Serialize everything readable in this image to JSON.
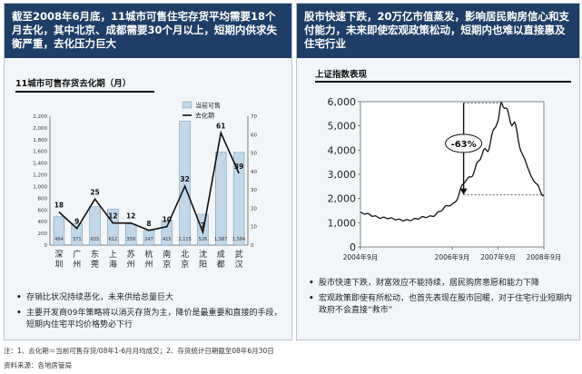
{
  "left_panel": {
    "banner": "截至2008年6月底，11城市可售住宅存货平均需要18个月去化，其中北京、成都需要30个月以上，短期内供求失衡严重，去化压力巨大",
    "bullets": [
      "存销比状况持续恶化，未来供给总量巨大",
      "主要开发商09年策略将以消灭存货为主，降价是最重要和直接的手段，短期内住宅平均价格势必下行"
    ]
  },
  "right_panel": {
    "banner": "股市快速下跌，20万亿市值蒸发，影响居民购房信心和支付能力，未来即使宏观政策松动，短期内也难以直接惠及住宅行业",
    "bullets": [
      "股市快速下跌，财富效应不能持续，居民购房意愿和能力下降",
      "宏观政策即使有所松动，也首先表现在股市回暖，对于住宅行业短期内政府不会直接“救市”"
    ]
  },
  "footnote": "注：1、去化期＝当前可售存货/08年1-6月月均成交；2、存货统计日期截至08年6月30日",
  "source": "资料来源：各地房管局",
  "chart_data": [
    {
      "type": "bar",
      "title": "11城市可售存货去化期（月）",
      "categories": [
        "深圳",
        "广州",
        "东莞",
        "上海",
        "苏州",
        "杭州",
        "南京",
        "北京",
        "沈阳",
        "成都",
        "武汉"
      ],
      "series": [
        {
          "name": "当前可售",
          "axis": "left",
          "values": [
            484,
            371,
            655,
            612,
            359,
            247,
            415,
            2115,
            526,
            1587,
            1584
          ],
          "labels": [
            "484",
            "371",
            "655",
            "612",
            "359",
            "247",
            "415",
            "2,115",
            "526",
            "1,587",
            "1,584"
          ]
        },
        {
          "name": "去化期",
          "axis": "right",
          "type": "line",
          "values": [
            18,
            9,
            25,
            12,
            12,
            8,
            10,
            32,
            7,
            61,
            39
          ]
        }
      ],
      "ylim_left": [
        0,
        2200
      ],
      "yticks_left": [
        "0",
        "200",
        "400",
        "600",
        "800",
        "1,000",
        "1,200",
        "1,400",
        "1,600",
        "1,800",
        "2,000",
        "2,200"
      ],
      "ylim_right": [
        0,
        70
      ],
      "yticks_right": [
        "0",
        "10",
        "20",
        "30",
        "40",
        "50",
        "60",
        "70"
      ],
      "legend_position": "top-right",
      "colors": {
        "bar": "#c3d7e6",
        "bar_edge": "#7f9db5",
        "line": "#111111"
      }
    },
    {
      "type": "line",
      "title": "上证指数表现",
      "x": [
        "2004-09",
        "2005-03",
        "2005-09",
        "2006-03",
        "2006-09",
        "2007-01",
        "2007-06",
        "2007-09",
        "2007-10",
        "2008-01",
        "2008-04",
        "2008-06",
        "2008-09"
      ],
      "series": [
        {
          "values": [
            1400,
            1200,
            1100,
            1250,
            1750,
            2800,
            4000,
            5200,
            5950,
            5100,
            3600,
            2800,
            2150
          ]
        }
      ],
      "xticks": [
        "2004年9月",
        "2006年9月",
        "2007年9月",
        "2008年9月"
      ],
      "ylim": [
        0,
        6000
      ],
      "yticks": [
        "0",
        "1,000",
        "2,000",
        "3,000",
        "4,000",
        "5,000",
        "6,000"
      ],
      "annotation": "-63%",
      "grid": false,
      "colors": {
        "line": "#111111"
      }
    }
  ]
}
